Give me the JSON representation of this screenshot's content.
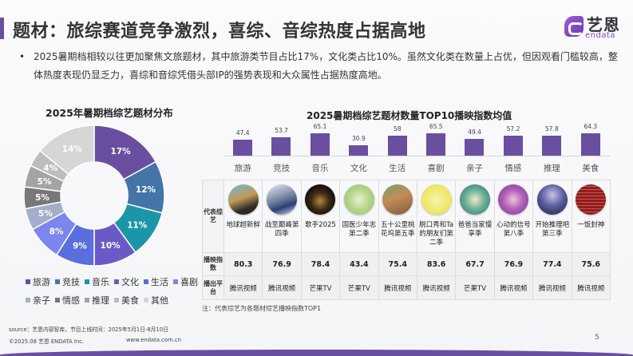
{
  "header": {
    "title": "题材：旅综赛道竞争激烈，喜综、音综热度占据高地",
    "logo_cn": "艺恩",
    "logo_en": "endata",
    "accent_color": "#6a4fa0"
  },
  "summary": {
    "bullet": "•",
    "text": "2025暑期档相较以往更加聚焦文旅题材，其中旅游类节目占比17%，文化类占比10%。虽然文化类在数量上占优，但因观看门槛较高，整体热度表现仍显乏力，喜综和音综凭借头部IP的强势表现和大众属性占据热度高地。"
  },
  "chart_data": [
    {
      "type": "pie",
      "title": "2025年暑期档综艺题材分布",
      "categories": [
        "旅游",
        "竞技",
        "音乐",
        "文化",
        "生活",
        "喜剧",
        "亲子",
        "情感",
        "推理",
        "美食",
        "其他"
      ],
      "values": [
        17,
        12,
        11,
        10,
        9,
        8,
        5,
        5,
        5,
        4,
        14
      ],
      "labels": [
        "17%",
        "12%",
        "11%",
        "10%",
        "9%",
        "8%",
        "5%",
        "5%",
        "5%",
        "4%",
        "14%"
      ],
      "colors": [
        "#6a4fa0",
        "#4475a8",
        "#1b96a8",
        "#6a5ac8",
        "#5a6ee0",
        "#7b86ee",
        "#a3aecb",
        "#787878",
        "#a4a4a4",
        "#bdbdbd",
        "#d6d6d6"
      ],
      "donut": true,
      "legend_position": "bottom"
    },
    {
      "type": "bar",
      "title": "2025暑期档综艺题材数量TOP10播映指数均值",
      "categories": [
        "旅游",
        "竞技",
        "音乐",
        "文化",
        "生活",
        "喜剧",
        "亲子",
        "情感",
        "推理",
        "美食"
      ],
      "values": [
        47.4,
        53.7,
        65.1,
        30.9,
        58,
        65.5,
        49.4,
        57.2,
        57.8,
        64.3
      ],
      "value_labels": [
        "47.4",
        "53.7",
        "65.1",
        "30.9",
        "58",
        "65.5",
        "49.4",
        "57.2",
        "57.8",
        "64.3"
      ],
      "color": "#6a4fa0",
      "xlabel": "",
      "ylabel": "",
      "grid": false
    }
  ],
  "donut_legend": {
    "rows": [
      [
        {
          "label": "旅游",
          "color": "#6a4fa0"
        },
        {
          "label": "竞技",
          "color": "#4475a8"
        },
        {
          "label": "音乐",
          "color": "#1b96a8"
        },
        {
          "label": "文化",
          "color": "#6a5ac8"
        },
        {
          "label": "生活",
          "color": "#5a6ee0"
        },
        {
          "label": "喜剧",
          "color": "#7b86ee"
        }
      ],
      [
        {
          "label": "亲子",
          "color": "#a3aecb"
        },
        {
          "label": "情感",
          "color": "#787878"
        },
        {
          "label": "推理",
          "color": "#a4a4a4"
        },
        {
          "label": "美食",
          "color": "#bdbdbd"
        },
        {
          "label": "其他",
          "color": "#d6d6d6"
        }
      ]
    ]
  },
  "table": {
    "row_headers": {
      "show": "代表综艺",
      "index": "播映指数",
      "platform": "播出平台"
    },
    "columns": [
      {
        "show": "地球超新鲜",
        "index": "80.3",
        "platform": "腾讯视频",
        "thumb": "linear-gradient(160deg,#6fb6d6 0%,#c29a5a 45%,#2d2a26 75%)"
      },
      {
        "show": "战至巅峰第四季",
        "index": "76.9",
        "platform": "腾讯视频",
        "thumb": "linear-gradient(160deg,#e8edf4 0%,#6b7d9c 50%,#2c3e78 70%,#dfe6ee 100%)"
      },
      {
        "show": "歌手2025",
        "index": "78.4",
        "platform": "芒果TV",
        "thumb": "radial-gradient(circle at 50% 55%,#b08a3a 0%,#3a2a12 40%,#0b0b0b 75%)"
      },
      {
        "show": "国医少年志第二季",
        "index": "43.4",
        "platform": "芒果TV",
        "thumb": "radial-gradient(circle at 50% 50%,#e6efcf 0%,#b9d78c 45%,#8cbf7a 100%)"
      },
      {
        "show": "五十公里桃花坞第五季",
        "index": "75.4",
        "platform": "腾讯视频",
        "thumb": "linear-gradient(160deg,#6fa564 0%,#c58b58 45%,#7b5a3e 100%)"
      },
      {
        "show": "脱口秀和Ta的朋友们第二季",
        "index": "83.6",
        "platform": "腾讯视频",
        "thumb": "radial-gradient(circle at 50% 50%,#f6f3a8 0%,#efe86a 60%,#d6d150 100%)"
      },
      {
        "show": "爸爸当家慢享季",
        "index": "67.7",
        "platform": "芒果TV",
        "thumb": "radial-gradient(circle at 50% 50%,#f3e8c8 0%,#6bb39a 45%,#2f6c70 100%)"
      },
      {
        "show": "心动的信号第八季",
        "index": "76.9",
        "platform": "腾讯视频",
        "thumb": "radial-gradient(circle at 50% 50%,#f0c3d9 0%,#b461b8 45%,#6f3a9c 100%)"
      },
      {
        "show": "开始推理吧第三季",
        "index": "77.4",
        "platform": "腾讯视频",
        "thumb": "radial-gradient(circle at 50% 35%,#c5c4e2 0%,#5c5fa0 45%,#1d1e38 100%)"
      },
      {
        "show": "一饭封神",
        "index": "75.6",
        "platform": "腾讯视频",
        "thumb": "repeating-linear-gradient(0deg,#8e1f1f 0px,#8e1f1f 3px,#c9544a 3px,#c9544a 4px)"
      }
    ]
  },
  "note": "注：代表综艺为各题材综艺播映指数TOP1",
  "footer": {
    "source": "source：艺恩内容智库，节目上线时间：2025年5月1日-8月10日",
    "copyright": "©2025.08 艺恩 ENDATA Inc.",
    "site": "www.endata.com.cn",
    "page": "5"
  }
}
